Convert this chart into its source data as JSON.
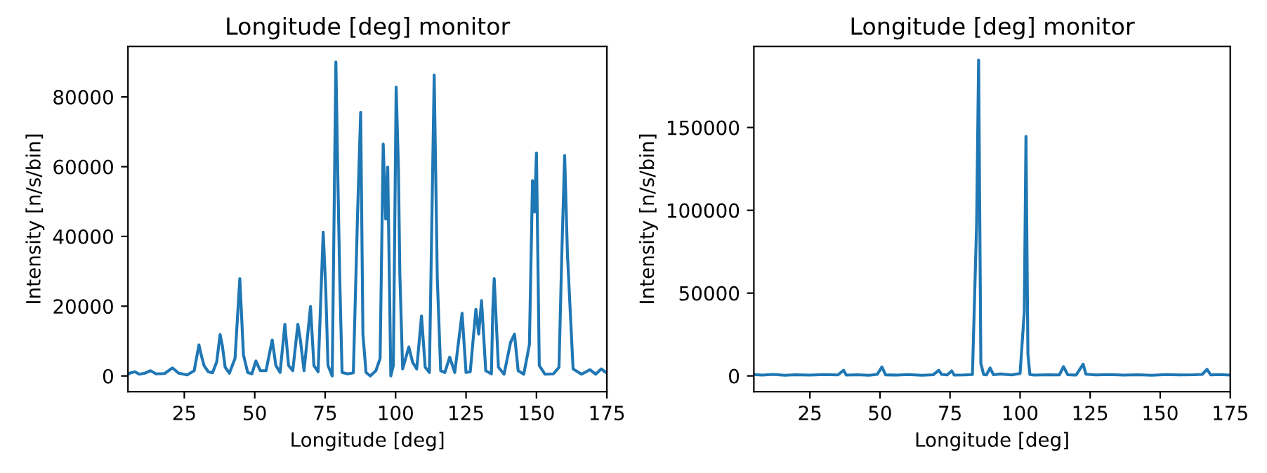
{
  "chart_data": [
    {
      "type": "line",
      "title": "Longitude [deg] monitor",
      "xlabel": "Longitude [deg]",
      "ylabel": "Intensity [n/s/bin]",
      "xlim": [
        5,
        175
      ],
      "ylim": [
        -4500,
        94500
      ],
      "xticks": [
        25,
        50,
        75,
        100,
        125,
        150,
        175
      ],
      "yticks": [
        0,
        20000,
        40000,
        60000,
        80000
      ],
      "grid": false,
      "legend": false,
      "marker": "none",
      "line_style": "solid",
      "series": [
        {
          "color": "#1f77b4",
          "x": [
            5,
            6,
            7.5,
            9,
            11,
            13,
            15,
            18,
            20.8,
            23,
            26,
            28.5,
            30.2,
            31,
            32,
            33.5,
            35,
            36.5,
            37.7,
            38.5,
            39.5,
            41,
            43,
            44.7,
            46,
            47.5,
            49,
            50.4,
            52,
            54,
            56.2,
            57.5,
            59,
            60.7,
            62,
            63.5,
            65.3,
            66.2,
            67.5,
            69.8,
            71,
            72.5,
            74.3,
            75.2,
            76,
            77.5,
            78.8,
            79.5,
            80.2,
            81,
            83,
            85,
            86.5,
            87.6,
            88.4,
            89.5,
            91,
            93,
            94.5,
            95.6,
            96.5,
            97.2,
            98.3,
            99.2,
            100.2,
            101,
            101.5,
            102.5,
            104.7,
            106,
            107.5,
            109.2,
            110.5,
            112,
            113.7,
            114.8,
            116,
            117.5,
            119.2,
            121,
            123.6,
            125,
            126.5,
            128.5,
            129.5,
            130.5,
            132,
            134,
            134.5,
            135,
            136.5,
            138.5,
            140.8,
            142.2,
            143.5,
            145.5,
            147.5,
            148.6,
            149.3,
            150,
            151,
            153,
            156,
            158,
            159,
            160,
            161,
            163,
            166,
            169,
            171,
            173,
            175
          ],
          "values": [
            500,
            900,
            1200,
            500,
            800,
            1500,
            600,
            700,
            2300,
            800,
            300,
            1500,
            8900,
            6000,
            3000,
            1200,
            900,
            4000,
            11900,
            8700,
            2500,
            800,
            5000,
            27900,
            6000,
            1000,
            600,
            4300,
            1500,
            1500,
            10300,
            3000,
            1000,
            14800,
            3000,
            1500,
            14800,
            10300,
            1500,
            19900,
            3000,
            1200,
            41200,
            24900,
            3000,
            0,
            90000,
            56700,
            27000,
            1000,
            600,
            900,
            46500,
            75600,
            12000,
            1000,
            0,
            1500,
            5000,
            66500,
            45000,
            59900,
            0,
            3000,
            82800,
            59600,
            29400,
            2000,
            8300,
            4000,
            2000,
            17200,
            2500,
            1000,
            86300,
            28000,
            1500,
            1000,
            5400,
            1000,
            18000,
            1000,
            1200,
            19100,
            12000,
            21600,
            1500,
            600,
            18800,
            27900,
            2500,
            500,
            9600,
            12000,
            1500,
            500,
            9000,
            56000,
            47000,
            63900,
            3000,
            500,
            600,
            2500,
            35000,
            63200,
            34900,
            2000,
            500,
            1800,
            500,
            2000,
            800
          ]
        }
      ]
    },
    {
      "type": "line",
      "title": "Longitude [deg] monitor",
      "xlabel": "Longitude [deg]",
      "ylabel": "Intensity [n/s/bin]",
      "xlim": [
        5,
        175
      ],
      "ylim": [
        -9500,
        199000
      ],
      "xticks": [
        25,
        50,
        75,
        100,
        125,
        150,
        175
      ],
      "yticks": [
        0,
        50000,
        100000,
        150000
      ],
      "grid": false,
      "legend": false,
      "marker": "none",
      "line_style": "solid",
      "series": [
        {
          "color": "#1f77b4",
          "x": [
            5,
            8,
            12,
            16,
            20,
            25,
            30,
            35,
            37,
            38,
            42,
            46,
            49,
            50.7,
            52,
            56,
            60,
            65,
            69,
            71,
            72,
            74,
            75.6,
            76.5,
            80,
            83,
            84.5,
            85.2,
            86,
            87,
            88,
            89.3,
            90.5,
            93,
            97,
            100,
            101.5,
            102.1,
            102.8,
            103.5,
            105,
            110,
            114,
            115.5,
            117,
            120,
            122.5,
            123.5,
            127,
            132,
            137,
            142,
            147,
            152,
            157,
            162,
            165,
            166.7,
            168,
            171,
            175
          ],
          "values": [
            800,
            500,
            900,
            400,
            700,
            500,
            800,
            600,
            3400,
            500,
            700,
            400,
            900,
            5400,
            600,
            500,
            800,
            400,
            700,
            3400,
            900,
            600,
            3000,
            500,
            600,
            800,
            92400,
            190700,
            7600,
            800,
            600,
            4800,
            700,
            1200,
            600,
            1500,
            38700,
            144600,
            13000,
            800,
            500,
            700,
            600,
            5600,
            700,
            500,
            7100,
            1000,
            600,
            800,
            500,
            700,
            400,
            800,
            600,
            700,
            900,
            4000,
            600,
            800,
            500
          ]
        }
      ]
    }
  ]
}
